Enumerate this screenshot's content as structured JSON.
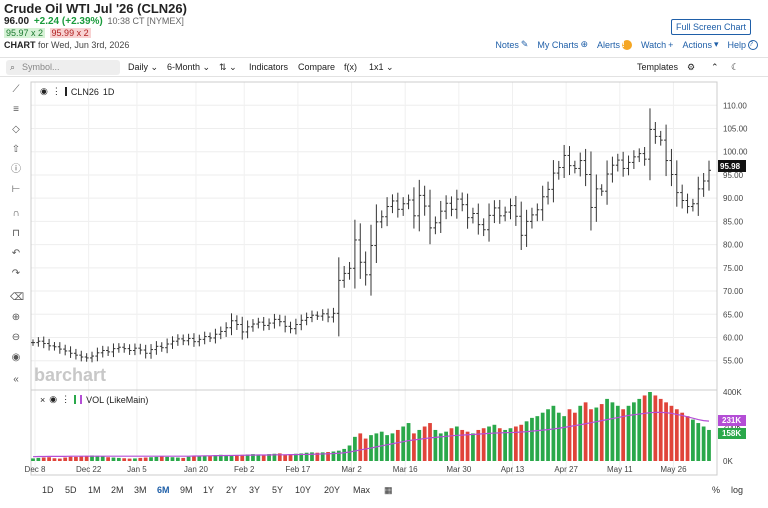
{
  "header": {
    "title": "Crude Oil WTI Jul '26 (CLN26)",
    "last": "96.00",
    "change": "+2.24 (+2.39%)",
    "time": "10:38 CT [NYMEX]",
    "bid": "95.97 x 2",
    "ask": "95.99 x 2",
    "chart_label": "CHART",
    "chart_for": "for Wed, Jun 3rd, 2026",
    "full_screen": "Full Screen Chart"
  },
  "toplinks": {
    "notes": "Notes",
    "my_charts": "My Charts",
    "alerts": "Alerts",
    "watch": "Watch",
    "actions": "Actions",
    "help": "Help"
  },
  "toolbar": {
    "search_placeholder": "Symbol...",
    "interval": "Daily",
    "range": "6-Month",
    "indicators": "Indicators",
    "compare": "Compare",
    "fx": "f(x)",
    "layout": "1x1",
    "templates": "Templates"
  },
  "legend": {
    "symbol": "CLN26",
    "period": "1D",
    "volume_label": "VOL (LikeMain)"
  },
  "watermark": "barchart",
  "last_price_label": "95.98",
  "volume_labels": {
    "vol_a": "231K",
    "vol_b": "158K"
  },
  "range_buttons": [
    "1D",
    "5D",
    "1M",
    "2M",
    "3M",
    "6M",
    "9M",
    "1Y",
    "2Y",
    "3Y",
    "5Y",
    "10Y",
    "20Y",
    "Max"
  ],
  "selected_range": "6M",
  "bottom_right": {
    "pct": "%",
    "log": "log"
  },
  "colors": {
    "up": "#2aa84a",
    "down": "#e0443a",
    "ma": "#b44ed6",
    "accent": "#1f5fa8"
  },
  "chart_data": {
    "type": "bar",
    "price_axis": {
      "ylim": [
        53,
        112
      ],
      "ticks": [
        "55.00",
        "60.00",
        "65.00",
        "70.00",
        "75.00",
        "80.00",
        "85.00",
        "90.00",
        "95.00",
        "100.00",
        "105.00",
        "110.00"
      ]
    },
    "x_ticks": [
      "Dec 8",
      "Dec 22",
      "Jan 5",
      "Jan 20",
      "Feb 2",
      "Feb 17",
      "Mar 2",
      "Mar 16",
      "Mar 30",
      "Apr 13",
      "Apr 27",
      "May 11",
      "May 26"
    ],
    "volume_axis": {
      "ylim": [
        0,
        400
      ],
      "ticks": [
        "0K",
        "200K",
        "400K"
      ]
    },
    "closes": [
      58.9,
      59.2,
      58.7,
      58.2,
      58.0,
      57.5,
      57.1,
      56.6,
      56.2,
      55.8,
      55.6,
      56.0,
      56.7,
      57.2,
      56.9,
      57.6,
      57.9,
      57.6,
      57.2,
      57.7,
      57.3,
      56.6,
      57.4,
      58.1,
      57.8,
      58.6,
      59.2,
      59.7,
      59.3,
      59.8,
      59.1,
      59.6,
      60.2,
      59.9,
      60.7,
      61.3,
      62.1,
      63.6,
      62.8,
      61.2,
      62.3,
      62.9,
      63.3,
      62.6,
      63.1,
      63.9,
      63.4,
      62.4,
      61.9,
      62.8,
      63.7,
      64.3,
      64.8,
      64.6,
      65.1,
      64.4,
      65.2,
      72.3,
      73.8,
      74.9,
      81.0,
      76.2,
      73.5,
      79.8,
      84.9,
      86.0,
      88.2,
      89.4,
      87.6,
      88.8,
      89.6,
      86.2,
      90.6,
      88.3,
      83.6,
      84.7,
      87.2,
      88.9,
      87.6,
      89.8,
      88.6,
      85.8,
      86.7,
      84.3,
      83.2,
      86.3,
      87.9,
      86.2,
      87.0,
      88.4,
      86.1,
      82.0,
      85.0,
      86.4,
      87.5,
      90.3,
      91.9,
      95.4,
      96.6,
      99.2,
      97.0,
      96.4,
      98.1,
      95.1,
      88.0,
      92.0,
      91.5,
      95.2,
      97.1,
      98.2,
      96.4,
      97.7,
      98.9,
      99.6,
      98.4,
      104.8,
      103.3,
      102.5,
      98.1,
      95.1,
      91.2,
      89.5,
      88.2,
      88.8,
      92.0,
      93.7,
      96.0
    ],
    "volumes": [
      15,
      18,
      20,
      22,
      16,
      14,
      20,
      25,
      24,
      28,
      30,
      32,
      30,
      28,
      22,
      20,
      18,
      16,
      14,
      15,
      18,
      20,
      22,
      24,
      26,
      24,
      22,
      20,
      18,
      25,
      30,
      28,
      30,
      32,
      34,
      36,
      30,
      32,
      34,
      36,
      38,
      40,
      38,
      36,
      40,
      42,
      44,
      38,
      40,
      42,
      44,
      48,
      50,
      48,
      50,
      52,
      55,
      60,
      70,
      90,
      140,
      160,
      130,
      150,
      160,
      170,
      150,
      160,
      180,
      200,
      220,
      160,
      180,
      200,
      220,
      180,
      160,
      170,
      190,
      200,
      180,
      170,
      160,
      180,
      190,
      200,
      210,
      190,
      180,
      190,
      200,
      210,
      230,
      250,
      260,
      280,
      300,
      320,
      280,
      260,
      300,
      280,
      320,
      340,
      300,
      310,
      330,
      360,
      340,
      320,
      300,
      320,
      340,
      360,
      380,
      400,
      380,
      360,
      340,
      320,
      300,
      280,
      260,
      240,
      220,
      200,
      180
    ],
    "ma_volumes_note": "",
    "ma_volume_series": [
      25,
      26,
      26,
      27,
      27,
      27,
      27,
      28,
      28,
      28,
      28,
      28,
      28,
      28,
      28,
      28,
      28,
      28,
      28,
      28,
      28,
      28,
      28,
      28,
      28,
      28,
      28,
      28,
      28,
      28,
      29,
      29,
      30,
      30,
      31,
      31,
      32,
      32,
      33,
      33,
      34,
      34,
      35,
      35,
      35,
      36,
      36,
      36,
      37,
      37,
      38,
      38,
      39,
      40,
      41,
      42,
      43,
      45,
      48,
      52,
      58,
      64,
      70,
      75,
      82,
      88,
      94,
      100,
      106,
      112,
      118,
      122,
      126,
      130,
      134,
      137,
      140,
      143,
      146,
      149,
      150,
      152,
      154,
      156,
      158,
      160,
      162,
      163,
      164,
      165,
      166,
      168,
      170,
      173,
      176,
      179,
      182,
      186,
      190,
      195,
      200,
      205,
      210,
      216,
      222,
      228,
      234,
      240,
      246,
      252,
      258,
      264,
      268,
      272,
      276,
      280,
      282,
      282,
      280,
      276,
      270,
      264,
      256,
      248,
      240,
      234,
      231
    ]
  }
}
